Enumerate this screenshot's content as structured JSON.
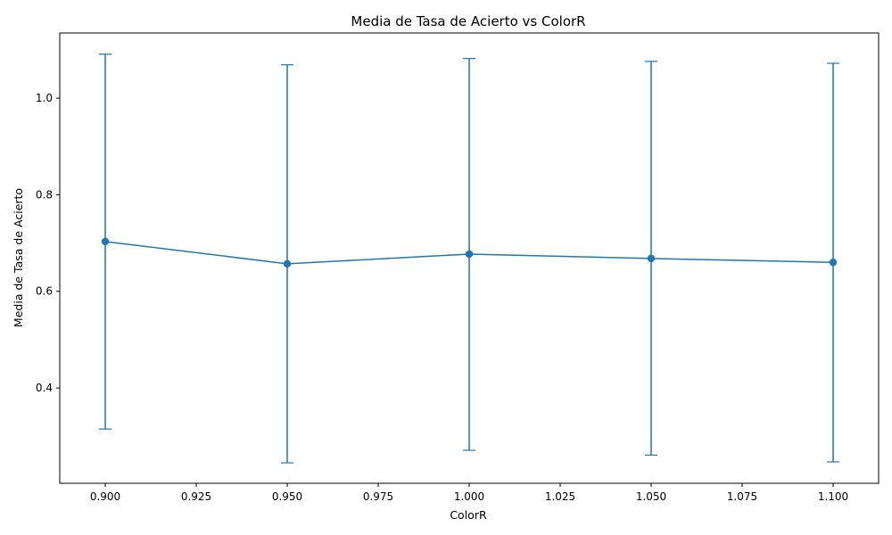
{
  "chart_data": {
    "type": "line",
    "title": "Media de Tasa de Acierto vs ColorR",
    "xlabel": "ColorR",
    "ylabel": "Media de Tasa de Acierto",
    "x": [
      0.9,
      0.95,
      1.0,
      1.05,
      1.1
    ],
    "series": [
      {
        "name": "",
        "values": [
          0.703,
          0.657,
          0.677,
          0.668,
          0.66
        ],
        "error_low": [
          0.315,
          0.245,
          0.271,
          0.261,
          0.247
        ],
        "error_high": [
          1.091,
          1.069,
          1.082,
          1.076,
          1.072
        ]
      }
    ],
    "xlim": [
      0.8875,
      1.1125
    ],
    "ylim": [
      0.2027,
      1.1348
    ],
    "xticks": [
      0.9,
      0.925,
      0.95,
      0.975,
      1.0,
      1.025,
      1.05,
      1.075,
      1.1
    ],
    "xtick_labels": [
      "0.900",
      "0.925",
      "0.950",
      "0.975",
      "1.000",
      "1.025",
      "1.050",
      "1.075",
      "1.100"
    ],
    "yticks": [
      0.4,
      0.6,
      0.8,
      1.0
    ],
    "ytick_labels": [
      "0.4",
      "0.6",
      "0.8",
      "1.0"
    ],
    "grid": false,
    "line_color": "#1f77b4",
    "marker": "circle",
    "error_bars": true
  }
}
